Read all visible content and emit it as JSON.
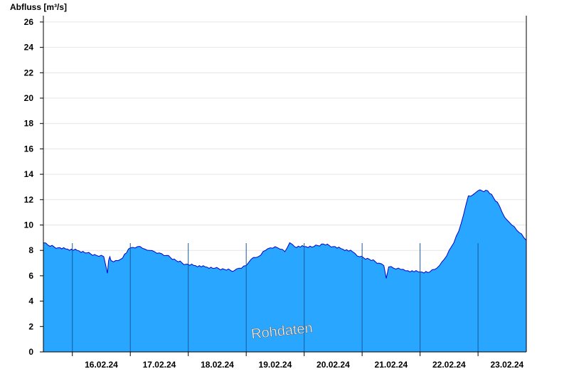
{
  "chart_data": {
    "type": "area",
    "ylabel": "Abfluss [m³/s]",
    "ylim": [
      0,
      26.5
    ],
    "yticks": [
      0,
      2,
      4,
      6,
      8,
      10,
      12,
      14,
      16,
      18,
      20,
      22,
      24,
      26
    ],
    "xlim": [
      "15.02.24 12:00",
      "23.02.24 20:00"
    ],
    "day_boundaries": [
      "16.02.24 00:00",
      "17.02.24 00:00",
      "18.02.24 00:00",
      "19.02.24 00:00",
      "20.02.24 00:00",
      "21.02.24 00:00",
      "22.02.24 00:00",
      "23.02.24 00:00"
    ],
    "xticks": [
      {
        "label": "16.02.24",
        "at": "16.02.24 12:00"
      },
      {
        "label": "17.02.24",
        "at": "17.02.24 12:00"
      },
      {
        "label": "18.02.24",
        "at": "18.02.24 12:00"
      },
      {
        "label": "19.02.24",
        "at": "19.02.24 12:00"
      },
      {
        "label": "20.02.24",
        "at": "20.02.24 12:00"
      },
      {
        "label": "21.02.24",
        "at": "21.02.24 12:00"
      },
      {
        "label": "22.02.24",
        "at": "22.02.24 12:00"
      },
      {
        "label": "23.02.24",
        "at": "23.02.24 12:00"
      }
    ],
    "grid": true,
    "colors": {
      "fill": "#29a6ff",
      "line": "#0000cc",
      "grid": "#e6e6e6",
      "divider": "#1a5a9a"
    },
    "annotation": "Rohdaten",
    "series": [
      {
        "x": [
          "15.02.24 12:00",
          "15.02.24 14:00",
          "15.02.24 18:00",
          "15.02.24 22:00",
          "16.02.24 02:00",
          "16.02.24 06:00",
          "16.02.24 10:00",
          "16.02.24 13:00",
          "16.02.24 14:30",
          "16.02.24 15:00",
          "16.02.24 15:30",
          "16.02.24 16:00",
          "16.02.24 17:00",
          "16.02.24 20:00",
          "17.02.24 00:00",
          "17.02.24 03:00",
          "17.02.24 06:00",
          "17.02.24 08:00",
          "17.02.24 10:00",
          "17.02.24 12:00",
          "17.02.24 15:00",
          "17.02.24 19:00",
          "17.02.24 23:00",
          "18.02.24 03:00",
          "18.02.24 07:00",
          "18.02.24 11:00",
          "18.02.24 15:00",
          "18.02.24 19:00",
          "18.02.24 21:00",
          "19.02.24 00:00",
          "19.02.24 02:00",
          "19.02.24 05:00",
          "19.02.24 08:00",
          "19.02.24 10:00",
          "19.02.24 12:00",
          "19.02.24 14:00",
          "19.02.24 16:00",
          "19.02.24 18:00",
          "19.02.24 20:00",
          "20.02.24 00:00",
          "20.02.24 04:00",
          "20.02.24 08:00",
          "20.02.24 12:00",
          "20.02.24 16:00",
          "20.02.24 20:00",
          "20.02.24 23:00",
          "21.02.24 03:00",
          "21.02.24 07:00",
          "21.02.24 09:00",
          "21.02.24 10:00",
          "21.02.24 11:00",
          "21.02.24 13:00",
          "21.02.24 16:00",
          "21.02.24 19:00",
          "22.02.24 00:00",
          "22.02.24 04:00",
          "22.02.24 06:00",
          "22.02.24 08:00",
          "22.02.24 10:00",
          "22.02.24 12:00",
          "22.02.24 14:00",
          "22.02.24 16:00",
          "22.02.24 18:00",
          "22.02.24 20:00",
          "22.02.24 22:00",
          "23.02.24 00:00",
          "23.02.24 04:00",
          "23.02.24 08:00",
          "23.02.24 10:00",
          "23.02.24 12:00",
          "23.02.24 14:00",
          "23.02.24 16:00",
          "23.02.24 18:00",
          "23.02.24 19:00",
          "23.02.24 20:00"
        ],
        "y": [
          8.6,
          8.4,
          8.2,
          8.1,
          8.0,
          7.8,
          7.6,
          7.5,
          6.2,
          7.2,
          7.5,
          7.2,
          7.1,
          7.3,
          8.2,
          8.3,
          8.1,
          8.0,
          7.9,
          7.8,
          7.6,
          7.2,
          6.9,
          6.8,
          6.7,
          6.6,
          6.5,
          6.4,
          6.6,
          6.8,
          7.3,
          7.5,
          8.0,
          8.2,
          8.3,
          8.1,
          7.9,
          8.6,
          8.3,
          8.3,
          8.3,
          8.5,
          8.3,
          8.1,
          7.9,
          7.5,
          7.3,
          7.0,
          6.8,
          5.8,
          6.7,
          6.6,
          6.5,
          6.4,
          6.3,
          6.3,
          6.5,
          6.8,
          7.3,
          8.0,
          8.6,
          9.5,
          10.8,
          12.3,
          12.4,
          12.7,
          12.7,
          11.8,
          11.0,
          10.4,
          10.0,
          9.6,
          9.3,
          9.0,
          8.8
        ]
      }
    ]
  }
}
